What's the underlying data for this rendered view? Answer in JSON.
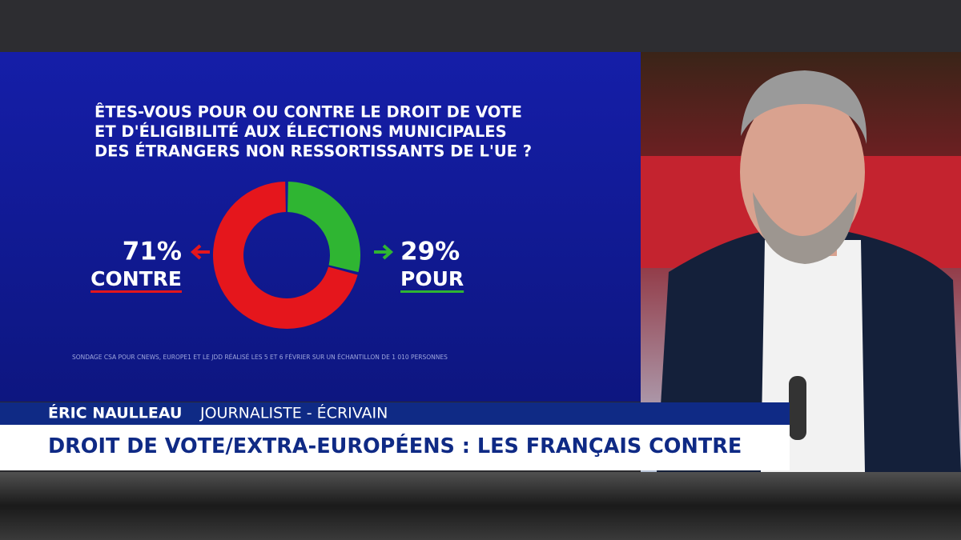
{
  "chart_data": {
    "type": "donut",
    "title": [
      "ÊTES-VOUS POUR OU CONTRE LE DROIT DE VOTE",
      "ET D'ÉLIGIBILITÉ AUX ÉLECTIONS MUNICIPALES",
      "DES ÉTRANGERS NON RESSORTISSANTS DE L'UE ?"
    ],
    "categories": [
      "CONTRE",
      "POUR"
    ],
    "values": [
      71,
      29
    ],
    "value_labels": [
      "71%",
      "29%"
    ],
    "colors": [
      "#e5161c",
      "#2fb532"
    ],
    "source": "SONDAGE CSA POUR CNEWS, EUROPE1 ET LE JDD RÉALISÉ LES 5 ET 6 FÉVRIER SUR UN ÉCHANTILLON DE 1 010 PERSONNES"
  },
  "lower_third": {
    "name": "ÉRIC NAULLEAU",
    "role": "JOURNALISTE - ÉCRIVAIN",
    "headline": "DROIT DE VOTE/EXTRA-EUROPÉENS : LES FRANÇAIS CONTRE"
  }
}
